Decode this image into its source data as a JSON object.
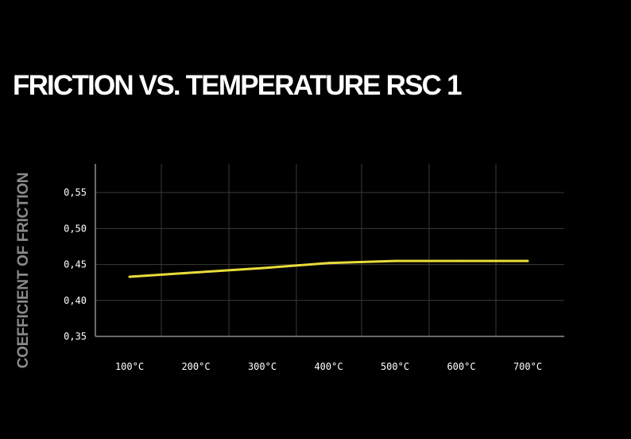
{
  "chart_data": {
    "type": "line",
    "title": "FRICTION VS. TEMPERATURE RSC 1",
    "xlabel": "",
    "ylabel": "COEFFICIENT OF FRICTION",
    "categories": [
      "100°C",
      "200°C",
      "300°C",
      "400°C",
      "500°C",
      "600°C",
      "700°C"
    ],
    "yticks": [
      "0,35",
      "0,40",
      "0,45",
      "0,50",
      "0,55"
    ],
    "ylim": [
      0.35,
      0.59
    ],
    "grid": true,
    "series": [
      {
        "name": "RSC 1",
        "color": "#e8dc3a",
        "values": [
          0.433,
          0.439,
          0.445,
          0.452,
          0.455,
          0.455,
          0.455
        ]
      }
    ]
  },
  "colors": {
    "background": "#000000",
    "grid": "#3a3a3a",
    "axis": "#6b6b6b",
    "line": "#e8dc3a"
  }
}
